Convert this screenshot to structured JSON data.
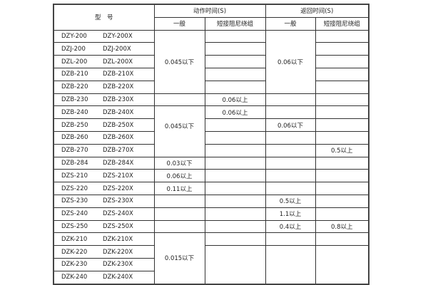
{
  "header": {
    "model": "型　号",
    "action_time": "动作时间(S)",
    "return_time": "返回时间(S)",
    "general": "一般",
    "short_damping": "短接阻尼绕组"
  },
  "rows": [
    {
      "m1": "DZY-200",
      "m2": "DZY-200X"
    },
    {
      "m1": "DZJ-200",
      "m2": "DZJ-200X"
    },
    {
      "m1": "DZL-200",
      "m2": "DZL-200X"
    },
    {
      "m1": "DZB-210",
      "m2": "DZB-210X"
    },
    {
      "m1": "DZB-220",
      "m2": "DZB-220X"
    },
    {
      "m1": "DZB-230",
      "m2": "DZB-230X"
    },
    {
      "m1": "DZB-240",
      "m2": "DZB-240X"
    },
    {
      "m1": "DZB-250",
      "m2": "DZB-250X"
    },
    {
      "m1": "DZB-260",
      "m2": "DZB-260X"
    },
    {
      "m1": "DZB-270",
      "m2": "DZB-270X"
    },
    {
      "m1": "DZB-284",
      "m2": "DZB-284X"
    },
    {
      "m1": "DZS-210",
      "m2": "DZS-210X"
    },
    {
      "m1": "DZS-220",
      "m2": "DZS-220X"
    },
    {
      "m1": "DZS-230",
      "m2": "DZS-230X"
    },
    {
      "m1": "DZS-240",
      "m2": "DZS-240X"
    },
    {
      "m1": "DZS-250",
      "m2": "DZS-250X"
    },
    {
      "m1": "DZK-210",
      "m2": "DZK-210X"
    },
    {
      "m1": "DZK-220",
      "m2": "DZK-220X"
    },
    {
      "m1": "DZK-230",
      "m2": "DZK-230X"
    },
    {
      "m1": "DZK-240",
      "m2": "DZK-240X"
    }
  ],
  "values": {
    "dzy_dzb220_action_general": "0.045以下",
    "dzy_dzb220_return_general": "0.06以下",
    "dzb230_action_short": "0.06以上",
    "dzb240_270_action_general": "0.045以下",
    "dzb240_action_short": "0.06以上",
    "dzb250_return_general": "0.06以下",
    "dzb270_return_short": "0.5以上",
    "dzb284_action_general": "0.03以下",
    "dzs210_action_general": "0.06以上",
    "dzs220_action_general": "0.11以上",
    "dzs230_return_general": "0.5以上",
    "dzs240_return_general": "1.1以上",
    "dzs250_return_general": "0.4以上",
    "dzs250_return_short": "0.8以上",
    "dzk_action_general": "0.015以下"
  }
}
